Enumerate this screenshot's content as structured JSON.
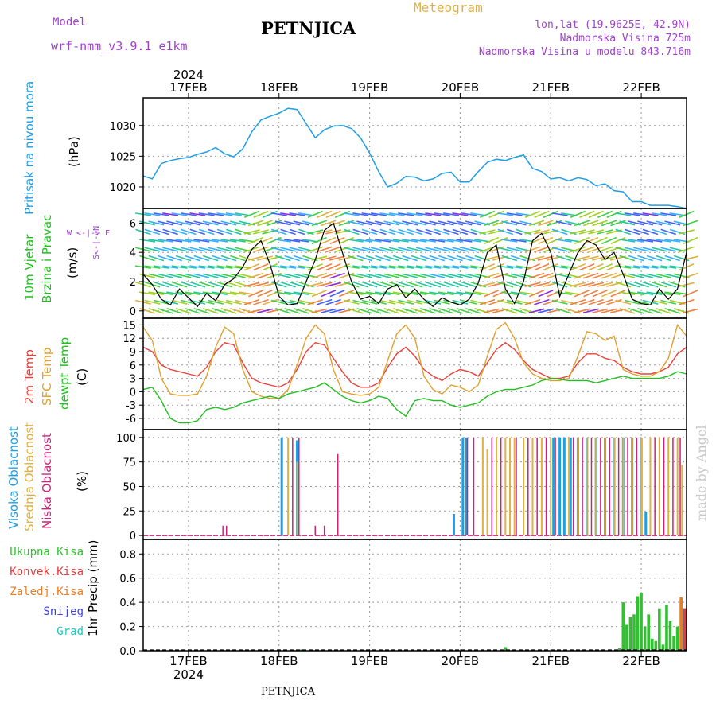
{
  "header": {
    "model_label": "Model",
    "model_name": "wrf-nmm_v3.9.1 e1km",
    "station": "PETNJICA",
    "product": "Meteogram",
    "lonlat": "lon,lat (19.9625E, 42.9N)",
    "elevation": "Nadmorska Visina 725m",
    "model_elevation": "Nadmorska Visina u modelu 843.716m",
    "footer_station": "PETNJICA",
    "watermark": "made by Angel"
  },
  "colors": {
    "pressure": "#1e9ee6",
    "temp2m": "#e8403a",
    "sfc_temp": "#e0a030",
    "dewpoint": "#20c020",
    "high_cloud": "#1e9ee6",
    "mid_cloud": "#e0b040",
    "low_cloud": "#d0207a",
    "total_precip": "#30c030",
    "conv_precip": "#e83a3a",
    "frozen_precip": "#f07a20",
    "snow": "#4040e0",
    "hail": "#20c8c0",
    "header_purple": "#a040d0",
    "header_orange": "#e0b040"
  },
  "chart_data": [
    {
      "type": "line",
      "panel": "pressure",
      "year_label": "2024",
      "x_ticks": [
        "17FEB",
        "18FEB",
        "19FEB",
        "20FEB",
        "21FEB",
        "22FEB"
      ],
      "ylabel_left": "Pritisak na nivou mora",
      "ylabel_unit": "(hPa)",
      "y_ticks": [
        1020,
        1025,
        1030
      ],
      "ylim": [
        1016.5,
        1034.5
      ],
      "grid": true,
      "series": [
        {
          "x": [
            16.5,
            16.6,
            16.7,
            16.8,
            16.9,
            17.0,
            17.1,
            17.2,
            17.3,
            17.4,
            17.5,
            17.6,
            17.7,
            17.8,
            17.9,
            18.0,
            18.1,
            18.2,
            18.3,
            18.4,
            18.5,
            18.6,
            18.7,
            18.8,
            18.9,
            19.0,
            19.1,
            19.2,
            19.3,
            19.4,
            19.5,
            19.6,
            19.7,
            19.8,
            19.9,
            20.0,
            20.1,
            20.2,
            20.3,
            20.4,
            20.5,
            20.6,
            20.7,
            20.8,
            20.9,
            21.0,
            21.1,
            21.2,
            21.3,
            21.4,
            21.5,
            21.6,
            21.7,
            21.8,
            21.9,
            22.0,
            22.1,
            22.2,
            22.3,
            22.4,
            22.5
          ],
          "y": [
            1021.8,
            1021.3,
            1023.8,
            1024.3,
            1024.6,
            1024.8,
            1025.3,
            1025.7,
            1026.4,
            1025.4,
            1024.9,
            1026.2,
            1029.0,
            1030.9,
            1031.5,
            1032.0,
            1032.8,
            1032.6,
            1030.3,
            1028.0,
            1029.3,
            1029.9,
            1030.0,
            1029.5,
            1028.0,
            1025.5,
            1022.5,
            1020.0,
            1020.6,
            1021.7,
            1021.6,
            1021.0,
            1021.3,
            1022.2,
            1022.4,
            1020.8,
            1020.8,
            1022.5,
            1024.0,
            1024.5,
            1024.3,
            1024.8,
            1025.2,
            1023.0,
            1022.5,
            1021.3,
            1021.5,
            1021.0,
            1021.5,
            1021.2,
            1020.2,
            1020.5,
            1019.4,
            1019.2,
            1017.6,
            1017.6,
            1017.0,
            1017.0,
            1017.0,
            1016.8,
            1016.5
          ]
        }
      ]
    },
    {
      "type": "line",
      "panel": "wind",
      "ylabel_left": "10m Vjetar",
      "ylabel_left2": "Brzina i Pravac",
      "ylabel_unit": "(m/s)",
      "compass": "W <-|-> E",
      "compass_ns": "S<-|->N",
      "y_ticks": [
        0,
        2,
        4,
        6
      ],
      "ylim": [
        -0.5,
        7.0
      ],
      "grid": true,
      "series": [
        {
          "name": "Brzina",
          "x": [
            16.5,
            16.6,
            16.7,
            16.8,
            16.9,
            17.0,
            17.1,
            17.2,
            17.3,
            17.4,
            17.5,
            17.6,
            17.7,
            17.8,
            17.9,
            18.0,
            18.1,
            18.2,
            18.3,
            18.4,
            18.5,
            18.6,
            18.7,
            18.8,
            18.9,
            19.0,
            19.1,
            19.2,
            19.3,
            19.4,
            19.5,
            19.6,
            19.7,
            19.8,
            19.9,
            20.0,
            20.1,
            20.2,
            20.3,
            20.4,
            20.5,
            20.6,
            20.7,
            20.8,
            20.9,
            21.0,
            21.1,
            21.2,
            21.3,
            21.4,
            21.5,
            21.6,
            21.7,
            21.8,
            21.9,
            22.0,
            22.1,
            22.2,
            22.3,
            22.4,
            22.5
          ],
          "y": [
            2.5,
            1.8,
            0.8,
            0.4,
            1.5,
            0.9,
            0.3,
            1.2,
            0.7,
            1.8,
            2.2,
            3.0,
            4.2,
            4.8,
            3.2,
            1.0,
            0.4,
            0.5,
            2.0,
            3.5,
            5.5,
            6.0,
            4.0,
            2.0,
            0.8,
            1.0,
            0.5,
            1.5,
            1.8,
            0.9,
            1.5,
            0.8,
            0.3,
            0.9,
            0.6,
            0.4,
            0.8,
            1.9,
            4.0,
            4.5,
            1.5,
            0.5,
            2.0,
            4.8,
            5.3,
            4.0,
            1.0,
            2.5,
            4.0,
            4.8,
            4.5,
            3.5,
            4.0,
            2.5,
            0.8,
            0.5,
            0.4,
            1.5,
            0.8,
            1.5,
            4.0
          ]
        }
      ]
    },
    {
      "type": "line",
      "panel": "temperature",
      "ylabel_left": "2m Temp",
      "ylabel_left2": "SFC Temp",
      "ylabel_left3": "dewpt Temp",
      "ylabel_unit": "(C)",
      "y_ticks": [
        -6,
        -3,
        0,
        3,
        6,
        9,
        12,
        15
      ],
      "ylim": [
        -8.5,
        16.5
      ],
      "grid": true,
      "series": [
        {
          "name": "2m Temp",
          "x": [
            16.5,
            16.6,
            16.7,
            16.8,
            16.9,
            17.0,
            17.1,
            17.2,
            17.3,
            17.4,
            17.5,
            17.6,
            17.7,
            17.8,
            17.9,
            18.0,
            18.1,
            18.2,
            18.3,
            18.4,
            18.5,
            18.6,
            18.7,
            18.8,
            18.9,
            19.0,
            19.1,
            19.2,
            19.3,
            19.4,
            19.5,
            19.6,
            19.7,
            19.8,
            19.9,
            20.0,
            20.1,
            20.2,
            20.3,
            20.4,
            20.5,
            20.6,
            20.7,
            20.8,
            20.9,
            21.0,
            21.1,
            21.2,
            21.3,
            21.4,
            21.5,
            21.6,
            21.7,
            21.8,
            21.9,
            22.0,
            22.1,
            22.2,
            22.3,
            22.4,
            22.5
          ],
          "y": [
            10.0,
            9.0,
            6.0,
            5.0,
            4.5,
            4.0,
            3.5,
            5.5,
            9.0,
            11.0,
            10.5,
            6.5,
            3.0,
            2.0,
            1.5,
            1.0,
            2.0,
            5.0,
            9.0,
            11.0,
            10.5,
            7.5,
            4.5,
            2.0,
            1.0,
            1.0,
            2.0,
            5.5,
            8.5,
            10.0,
            8.0,
            5.0,
            3.5,
            2.5,
            4.0,
            5.0,
            4.5,
            3.5,
            6.5,
            9.5,
            11.0,
            9.5,
            7.0,
            5.0,
            4.0,
            3.0,
            3.0,
            3.5,
            6.5,
            8.5,
            8.5,
            7.5,
            7.0,
            5.5,
            4.5,
            4.0,
            4.0,
            4.5,
            5.5,
            8.5,
            10.0
          ]
        },
        {
          "name": "SFC Temp",
          "x": [
            16.5,
            16.6,
            16.7,
            16.8,
            16.9,
            17.0,
            17.1,
            17.2,
            17.3,
            17.4,
            17.5,
            17.6,
            17.7,
            17.8,
            17.9,
            18.0,
            18.1,
            18.2,
            18.3,
            18.4,
            18.5,
            18.6,
            18.7,
            18.8,
            18.9,
            19.0,
            19.1,
            19.2,
            19.3,
            19.4,
            19.5,
            19.6,
            19.7,
            19.8,
            19.9,
            20.0,
            20.1,
            20.2,
            20.3,
            20.4,
            20.5,
            20.6,
            20.7,
            20.8,
            20.9,
            21.0,
            21.1,
            21.2,
            21.3,
            21.4,
            21.5,
            21.6,
            21.7,
            21.8,
            21.9,
            22.0,
            22.1,
            22.2,
            22.3,
            22.4,
            22.5
          ],
          "y": [
            14.5,
            11.5,
            3.0,
            -0.5,
            -0.8,
            -0.8,
            -0.5,
            3.5,
            10.0,
            14.5,
            13.0,
            5.0,
            0.0,
            -1.0,
            -1.5,
            -1.5,
            0.5,
            6.0,
            12.0,
            15.0,
            13.0,
            5.0,
            0.0,
            -0.5,
            -0.8,
            -0.5,
            1.0,
            7.0,
            13.0,
            15.0,
            12.0,
            3.5,
            0.5,
            -0.5,
            1.5,
            1.0,
            0.0,
            1.5,
            8.0,
            14.0,
            15.5,
            12.0,
            6.5,
            4.0,
            3.0,
            2.5,
            2.5,
            3.0,
            8.0,
            13.5,
            13.0,
            11.5,
            12.5,
            5.0,
            4.0,
            3.5,
            3.5,
            4.5,
            7.5,
            15.0,
            12.5
          ]
        },
        {
          "name": "dewpt Temp",
          "x": [
            16.5,
            16.6,
            16.7,
            16.8,
            16.9,
            17.0,
            17.1,
            17.2,
            17.3,
            17.4,
            17.5,
            17.6,
            17.7,
            17.8,
            17.9,
            18.0,
            18.1,
            18.2,
            18.3,
            18.4,
            18.5,
            18.6,
            18.7,
            18.8,
            18.9,
            19.0,
            19.1,
            19.2,
            19.3,
            19.4,
            19.5,
            19.6,
            19.7,
            19.8,
            19.9,
            20.0,
            20.1,
            20.2,
            20.3,
            20.4,
            20.5,
            20.6,
            20.7,
            20.8,
            20.9,
            21.0,
            21.1,
            21.2,
            21.3,
            21.4,
            21.5,
            21.6,
            21.7,
            21.8,
            21.9,
            22.0,
            22.1,
            22.2,
            22.3,
            22.4,
            22.5
          ],
          "y": [
            0.5,
            1.0,
            -2.0,
            -6.0,
            -7.0,
            -7.0,
            -6.5,
            -4.0,
            -3.5,
            -4.0,
            -3.5,
            -2.5,
            -2.0,
            -1.5,
            -1.0,
            -1.5,
            -0.5,
            0.0,
            0.5,
            1.0,
            2.0,
            0.5,
            -1.0,
            -2.0,
            -2.5,
            -2.0,
            -1.0,
            -1.5,
            -4.0,
            -5.5,
            -2.0,
            -1.5,
            -2.0,
            -2.0,
            -3.0,
            -3.5,
            -3.0,
            -2.5,
            -1.0,
            0.0,
            0.5,
            0.5,
            1.0,
            1.5,
            2.5,
            3.0,
            2.8,
            2.5,
            2.5,
            2.5,
            2.0,
            2.5,
            3.0,
            3.5,
            3.0,
            3.0,
            3.0,
            3.0,
            3.5,
            4.5,
            4.0
          ]
        }
      ]
    },
    {
      "type": "bar",
      "panel": "cloud",
      "ylabel_left": "Visoka Oblacnost",
      "ylabel_left2": "Srednja Oblacnost",
      "ylabel_left3": "Niska Oblacnost",
      "ylabel_unit": "(%)",
      "y_ticks": [
        0,
        25,
        50,
        75,
        100
      ],
      "ylim": [
        -4,
        108
      ],
      "grid": true,
      "series": [
        {
          "name": "Visoka Oblacnost",
          "x": [
            18.03,
            18.2,
            19.93,
            20.03,
            20.07,
            21.03,
            21.1,
            21.15,
            21.22,
            21.3,
            21.4,
            21.5,
            21.6,
            21.7,
            21.8,
            21.9,
            22.0,
            22.05
          ],
          "values": [
            100,
            97,
            22,
            100,
            100,
            100,
            100,
            100,
            100,
            100,
            100,
            100,
            100,
            100,
            100,
            100,
            100,
            24
          ]
        },
        {
          "name": "Srednja Oblacnost",
          "x": [
            18.1,
            18.2,
            20.25,
            20.3,
            20.4,
            20.5,
            20.55,
            20.6,
            20.7,
            20.8,
            20.9,
            21.0,
            21.05,
            21.2,
            21.3,
            21.4,
            21.5,
            21.6,
            21.7,
            21.8,
            21.9,
            22.0,
            22.1,
            22.2,
            22.3,
            22.4,
            22.45
          ],
          "values": [
            100,
            75,
            100,
            88,
            100,
            100,
            100,
            100,
            100,
            100,
            100,
            100,
            100,
            100,
            100,
            100,
            100,
            100,
            100,
            100,
            100,
            100,
            100,
            100,
            100,
            100,
            72
          ]
        },
        {
          "name": "Niska Oblacnost",
          "x": [
            17.38,
            17.42,
            18.15,
            18.22,
            18.4,
            18.5,
            18.65,
            20.08,
            20.15,
            20.35,
            20.45,
            20.62,
            20.75,
            20.85,
            20.95,
            21.05,
            21.25,
            21.35,
            21.45,
            21.55,
            21.65,
            21.75,
            21.85,
            21.95,
            22.15,
            22.25,
            22.35,
            22.43
          ],
          "values": [
            10,
            10,
            100,
            100,
            10,
            10,
            83,
            100,
            100,
            100,
            100,
            100,
            100,
            100,
            100,
            100,
            100,
            100,
            100,
            100,
            100,
            100,
            100,
            100,
            100,
            100,
            100,
            100
          ]
        }
      ]
    },
    {
      "type": "bar",
      "panel": "precipitation",
      "ylabel_left": "1hr Precip (mm)",
      "legend": [
        "Ukupna Kisa",
        "Konvek.Kisa",
        "Zaledj.Kisa",
        "Snijeg",
        "Grad"
      ],
      "y_ticks": [
        0.0,
        0.2,
        0.4,
        0.6,
        0.8
      ],
      "ylim": [
        0,
        0.92
      ],
      "x_ticks": [
        "17FEB",
        "18FEB",
        "19FEB",
        "20FEB",
        "21FEB",
        "22FEB"
      ],
      "year_label": "2024",
      "grid": true,
      "series": [
        {
          "name": "Ukupna Kisa",
          "x": [
            18.25,
            20.5,
            21.76,
            21.8,
            21.84,
            21.88,
            21.92,
            21.96,
            22.0,
            22.04,
            22.08,
            22.12,
            22.16,
            22.2,
            22.24,
            22.28,
            22.32,
            22.36,
            22.4,
            22.44,
            22.48
          ],
          "values": [
            0.01,
            0.03,
            0.02,
            0.4,
            0.22,
            0.28,
            0.3,
            0.45,
            0.48,
            0.2,
            0.3,
            0.1,
            0.08,
            0.35,
            0.05,
            0.38,
            0.25,
            0.12,
            0.2,
            0.42,
            0.35
          ]
        },
        {
          "name": "Konvek.Kisa",
          "x": [
            22.48
          ],
          "values": [
            0.35
          ]
        },
        {
          "name": "Zaledj.Kisa",
          "x": [
            22.44
          ],
          "values": [
            0.44
          ]
        }
      ]
    }
  ]
}
